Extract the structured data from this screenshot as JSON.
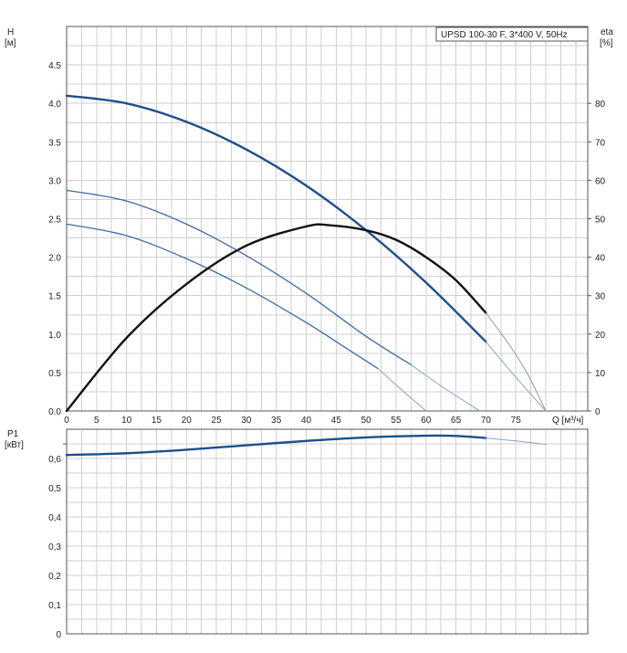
{
  "chart_data": [
    {
      "type": "line",
      "title": "UPSD 100-30 F, 3*400 V, 50Hz",
      "ylabel_left": "H",
      "ylabel_left_unit": "[м]",
      "ylabel_right": "eta",
      "ylabel_right_unit": "[%]",
      "xlabel": "Q [м³/ч]",
      "xlim": [
        0,
        87
      ],
      "ylim_left": [
        0,
        5.0
      ],
      "ylim_right": [
        0,
        100
      ],
      "x_ticks": [
        "0",
        "5",
        "10",
        "15",
        "20",
        "25",
        "30",
        "35",
        "40",
        "45",
        "50",
        "55",
        "60",
        "65",
        "70",
        "75"
      ],
      "y_ticks_left": [
        "0.0",
        "0.5",
        "1.0",
        "1.5",
        "2.0",
        "2.5",
        "3.0",
        "3.5",
        "4.0",
        "4.5"
      ],
      "y_ticks_right": [
        "0",
        "10",
        "20",
        "30",
        "40",
        "50",
        "60",
        "70",
        "80"
      ],
      "grid": true,
      "series": [
        {
          "role": "head-speed1",
          "axis": "left",
          "color": "#1f4e8c",
          "x": [
            0,
            10,
            20,
            30,
            40,
            50,
            60,
            70
          ],
          "y": [
            4.1,
            4.0,
            3.76,
            3.4,
            2.93,
            2.35,
            1.67,
            0.9
          ]
        },
        {
          "role": "head-speed1-ext",
          "axis": "left",
          "color": "#8aa3c4",
          "x": [
            70,
            73,
            76,
            80
          ],
          "y": [
            0.9,
            0.62,
            0.35,
            0.0
          ]
        },
        {
          "role": "head-speed2",
          "axis": "left",
          "color": "#3e6aa8",
          "x": [
            0,
            10,
            20,
            30,
            40,
            50,
            57.5
          ],
          "y": [
            2.87,
            2.73,
            2.43,
            2.02,
            1.53,
            0.97,
            0.6
          ]
        },
        {
          "role": "head-speed2-ext",
          "axis": "left",
          "color": "#8aa3c4",
          "x": [
            57.5,
            63,
            69
          ],
          "y": [
            0.6,
            0.3,
            0.0
          ]
        },
        {
          "role": "head-speed3",
          "axis": "left",
          "color": "#3e6aa8",
          "x": [
            0,
            10,
            20,
            30,
            40,
            47,
            52
          ],
          "y": [
            2.43,
            2.28,
            1.98,
            1.6,
            1.15,
            0.8,
            0.55
          ]
        },
        {
          "role": "head-speed3-ext",
          "axis": "left",
          "color": "#8aa3c4",
          "x": [
            52,
            56,
            60
          ],
          "y": [
            0.55,
            0.27,
            0.0
          ]
        },
        {
          "role": "efficiency",
          "axis": "right",
          "color": "#111111",
          "x": [
            0,
            10,
            20,
            30,
            40,
            44,
            50,
            55,
            60,
            65,
            70
          ],
          "y": [
            0,
            19,
            33,
            43,
            48,
            48.3,
            47,
            44.5,
            40,
            34,
            25.5
          ]
        },
        {
          "role": "efficiency-ext",
          "axis": "right",
          "color": "#9a9a9a",
          "x": [
            70,
            74,
            77,
            80
          ],
          "y": [
            25.5,
            17,
            9.5,
            0
          ]
        }
      ]
    },
    {
      "type": "line",
      "ylabel": "P1",
      "ylabel_unit": "[кВт]",
      "xlim": [
        0,
        87
      ],
      "ylim": [
        0,
        0.7
      ],
      "y_ticks": [
        "0",
        "0,1",
        "0,2",
        "0,3",
        "0,4",
        "0,5",
        "0,6"
      ],
      "grid": true,
      "series": [
        {
          "role": "power-speed1",
          "color": "#1f4e8c",
          "x": [
            0,
            10,
            20,
            30,
            40,
            50,
            60,
            65,
            70
          ],
          "y": [
            0.612,
            0.618,
            0.63,
            0.645,
            0.66,
            0.672,
            0.678,
            0.677,
            0.67
          ]
        },
        {
          "role": "power-speed1-ext",
          "color": "#8aa3c4",
          "x": [
            70,
            75,
            80
          ],
          "y": [
            0.67,
            0.66,
            0.648
          ]
        }
      ]
    }
  ]
}
